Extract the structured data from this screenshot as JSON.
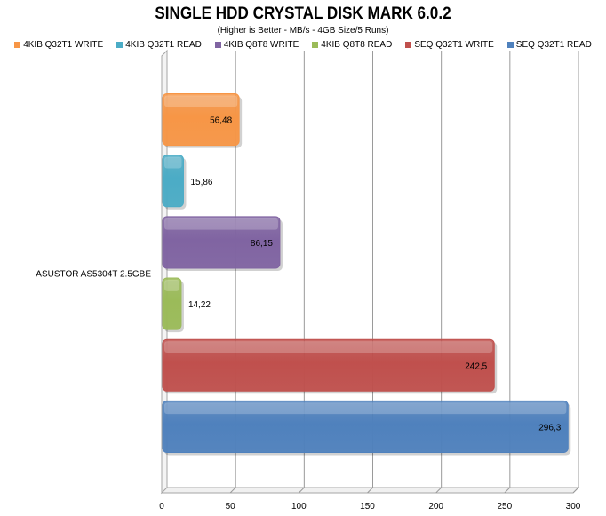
{
  "chart_data": {
    "type": "bar",
    "orientation": "horizontal",
    "title": "SINGLE HDD CRYSTAL DISK MARK 6.0.2",
    "subtitle": "(Higher is Better - MB/s - 4GB Size/5 Runs)",
    "categories": [
      "ASUSTOR AS5304T 2.5GBE"
    ],
    "xlim": [
      0,
      300
    ],
    "x_ticks": [
      0,
      50,
      100,
      150,
      200,
      250,
      300
    ],
    "grid": true,
    "legend_position": "top",
    "series": [
      {
        "name": "4KIB Q32T1 WRITE",
        "values": [
          56.48
        ],
        "label": "56,48",
        "color": "#f79646"
      },
      {
        "name": "4KIB Q32T1 READ",
        "values": [
          15.86
        ],
        "label": "15,86",
        "color": "#4bacc6"
      },
      {
        "name": "4KIB Q8T8 WRITE",
        "values": [
          86.15
        ],
        "label": "86,15",
        "color": "#8064a2"
      },
      {
        "name": "4KIB Q8T8 READ",
        "values": [
          14.22
        ],
        "label": "14,22",
        "color": "#9bbb59"
      },
      {
        "name": "SEQ Q32T1 WRITE",
        "values": [
          242.5
        ],
        "label": "242,5",
        "color": "#c0504d"
      },
      {
        "name": "SEQ Q32T1 READ",
        "values": [
          296.3
        ],
        "label": "296,3",
        "color": "#4f81bd"
      }
    ]
  }
}
